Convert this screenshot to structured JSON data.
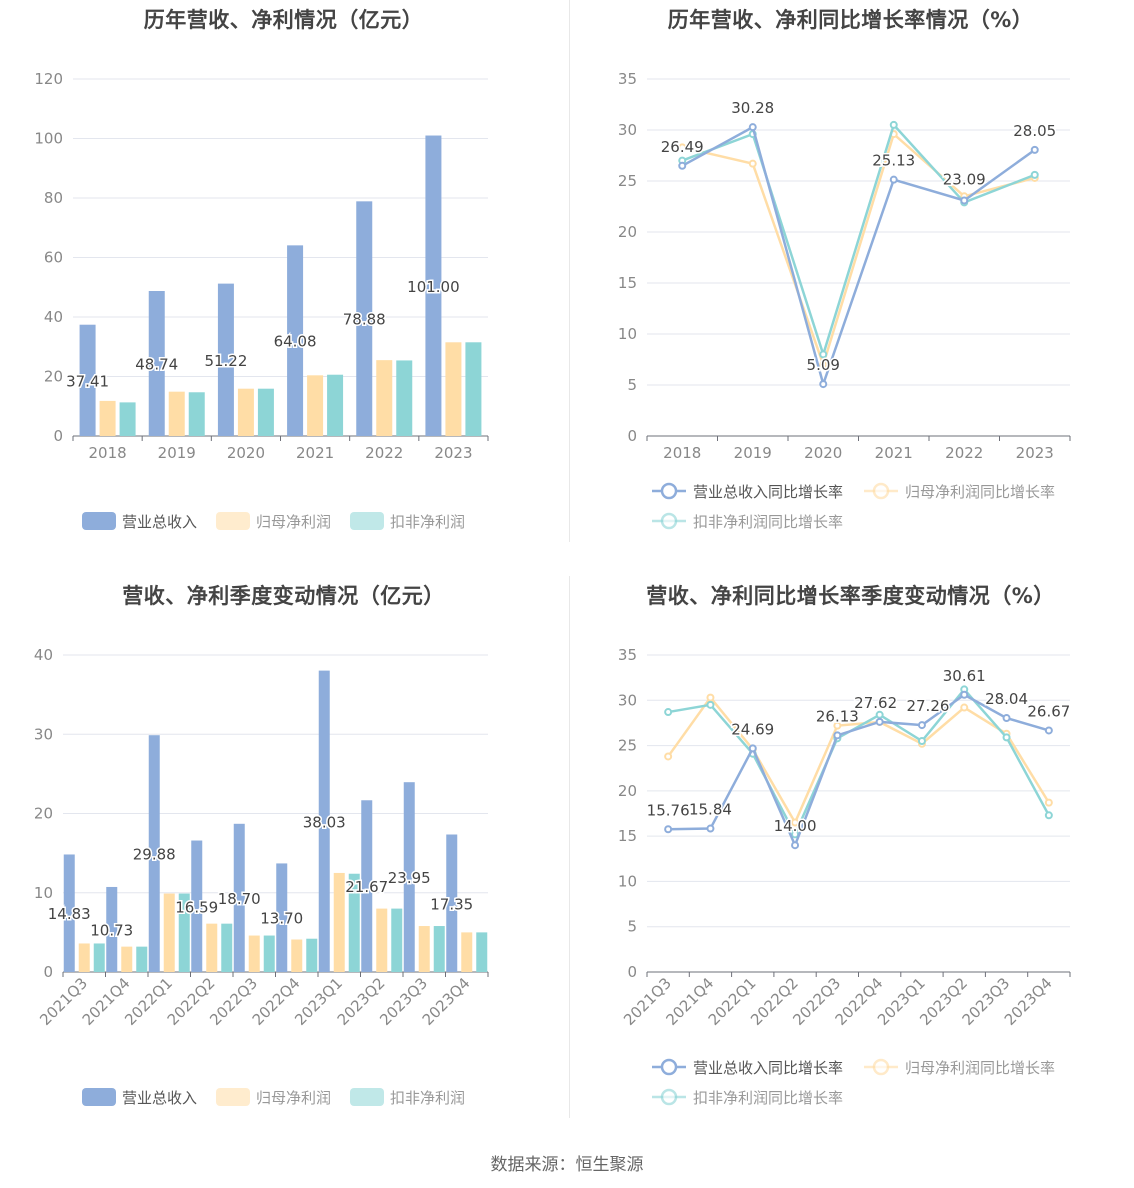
{
  "source": "数据来源：恒生聚源",
  "colors": {
    "revenue": "#8EADDB",
    "netprofit": "#FFDDA6",
    "deducted": "#8DD5D6",
    "grid": "#E3E6EE",
    "axis": "#6E7079",
    "tick": "#888888",
    "label": "#444444"
  },
  "chart_data": [
    {
      "type": "bar",
      "title": "历年营收、净利情况（亿元）",
      "categories": [
        "2018",
        "2019",
        "2020",
        "2021",
        "2022",
        "2023"
      ],
      "ylim": [
        0,
        120
      ],
      "yticks": [
        0,
        20,
        40,
        60,
        80,
        100,
        120
      ],
      "series": [
        {
          "name": "营业总收入",
          "values": [
            37.41,
            48.74,
            51.22,
            64.08,
            78.88,
            101.0
          ],
          "labels": [
            "37.41",
            "48.74",
            "51.22",
            "64.08",
            "78.88",
            "101.00"
          ]
        },
        {
          "name": "归母净利润",
          "values": [
            11.8,
            14.9,
            15.9,
            20.4,
            25.5,
            31.5
          ]
        },
        {
          "name": "扣非净利润",
          "values": [
            11.3,
            14.7,
            15.9,
            20.6,
            25.4,
            31.5
          ]
        }
      ],
      "legend": "bottom"
    },
    {
      "type": "line",
      "title": "历年营收、净利同比增长率情况（%）",
      "categories": [
        "2018",
        "2019",
        "2020",
        "2021",
        "2022",
        "2023"
      ],
      "ylim": [
        0,
        35
      ],
      "yticks": [
        0,
        5,
        10,
        15,
        20,
        25,
        30,
        35
      ],
      "series": [
        {
          "name": "营业总收入同比增长率",
          "values": [
            26.49,
            30.28,
            5.09,
            25.13,
            23.09,
            28.05
          ],
          "labels": [
            "26.49",
            "30.28",
            "5.09",
            "25.13",
            "23.09",
            "28.05"
          ]
        },
        {
          "name": "归母净利润同比增长率",
          "values": [
            28.3,
            26.7,
            7.0,
            29.6,
            23.5,
            25.3
          ]
        },
        {
          "name": "扣非净利润同比增长率",
          "values": [
            27.0,
            29.6,
            8.0,
            30.5,
            22.9,
            25.6
          ]
        }
      ],
      "legend": "bottom"
    },
    {
      "type": "bar",
      "title": "营收、净利季度变动情况（亿元）",
      "categories": [
        "2021Q3",
        "2021Q4",
        "2022Q1",
        "2022Q2",
        "2022Q3",
        "2022Q4",
        "2023Q1",
        "2023Q2",
        "2023Q3",
        "2023Q4"
      ],
      "ylim": [
        0,
        40
      ],
      "yticks": [
        0,
        10,
        20,
        30,
        40
      ],
      "series": [
        {
          "name": "营业总收入",
          "values": [
            14.83,
            10.73,
            29.88,
            16.59,
            18.7,
            13.7,
            38.03,
            21.67,
            23.95,
            17.35
          ],
          "labels": [
            "14.83",
            "10.73",
            "29.88",
            "16.59",
            "18.70",
            "13.70",
            "38.03",
            "21.67",
            "23.95",
            "17.35"
          ]
        },
        {
          "name": "归母净利润",
          "values": [
            3.6,
            3.2,
            9.9,
            6.1,
            4.6,
            4.1,
            12.5,
            8.0,
            5.8,
            5.0
          ]
        },
        {
          "name": "扣非净利润",
          "values": [
            3.6,
            3.2,
            9.9,
            6.1,
            4.6,
            4.2,
            12.4,
            8.0,
            5.8,
            5.0
          ]
        }
      ],
      "legend": "bottom"
    },
    {
      "type": "line",
      "title": "营收、净利同比增长率季度变动情况（%）",
      "categories": [
        "2021Q3",
        "2021Q4",
        "2022Q1",
        "2022Q2",
        "2022Q3",
        "2022Q4",
        "2023Q1",
        "2023Q2",
        "2023Q3",
        "2023Q4"
      ],
      "ylim": [
        0,
        35
      ],
      "yticks": [
        0,
        5,
        10,
        15,
        20,
        25,
        30,
        35
      ],
      "series": [
        {
          "name": "营业总收入同比增长率",
          "values": [
            15.76,
            15.84,
            24.69,
            14.0,
            26.13,
            27.62,
            27.26,
            30.61,
            28.04,
            26.67
          ],
          "labels": [
            "15.76",
            "15.84",
            "24.69",
            "14.00",
            "26.13",
            "27.62",
            "27.26",
            "30.61",
            "28.04",
            "26.67"
          ]
        },
        {
          "name": "归母净利润同比增长率",
          "values": [
            23.8,
            30.3,
            24.6,
            16.5,
            27.2,
            27.6,
            25.2,
            29.2,
            26.3,
            18.7
          ]
        },
        {
          "name": "扣非净利润同比增长率",
          "values": [
            28.7,
            29.5,
            24.1,
            15.2,
            25.8,
            28.4,
            25.5,
            31.2,
            25.9,
            17.3
          ]
        }
      ],
      "legend": "bottom"
    }
  ]
}
